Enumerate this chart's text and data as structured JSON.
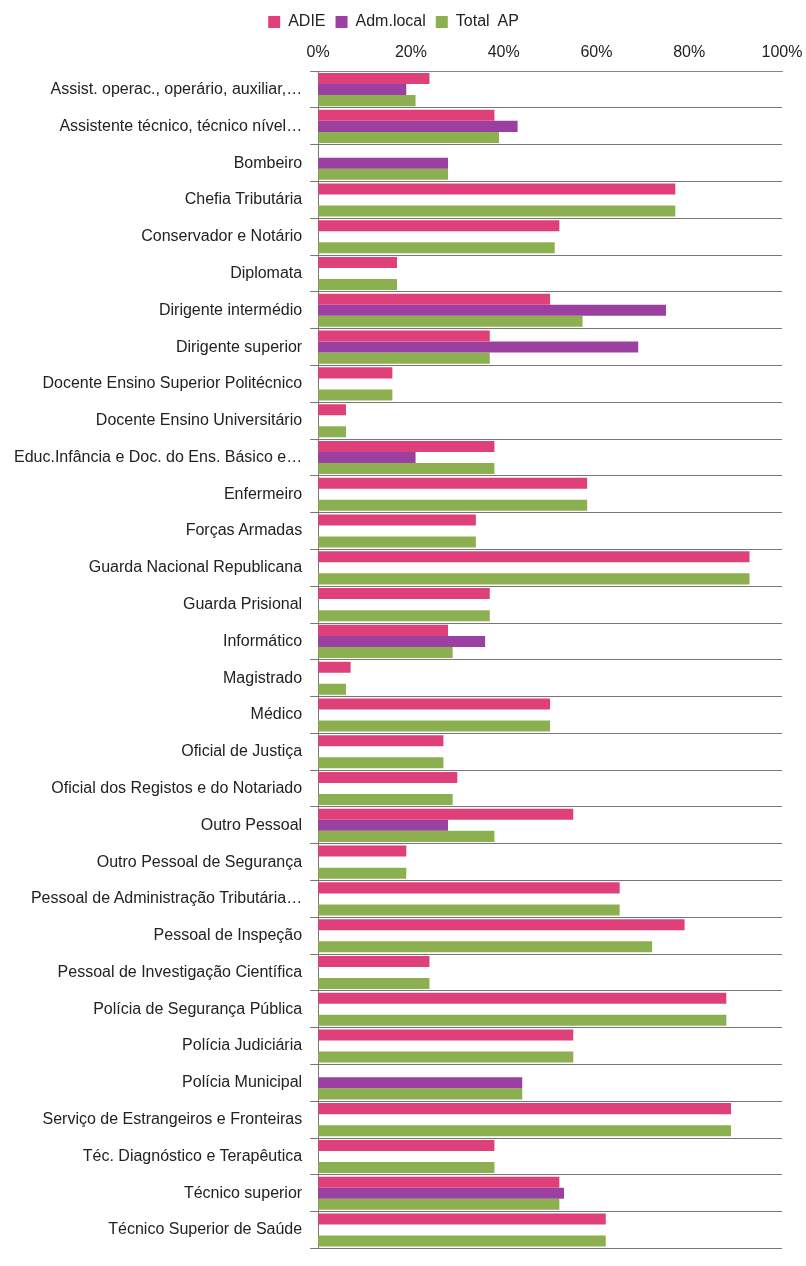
{
  "chart_data": {
    "type": "bar",
    "orientation": "horizontal",
    "categories": [
      "Assist. operac., operário, auxiliar,…",
      "Assistente técnico, técnico nível…",
      "Bombeiro",
      "Chefia Tributária",
      "Conservador e Notário",
      "Diplomata",
      "Dirigente intermédio",
      "Dirigente superior",
      "Docente Ensino Superior Politécnico",
      "Docente Ensino Universitário",
      "Educ.Infância e Doc. do Ens. Básico e…",
      "Enfermeiro",
      "Forças Armadas",
      "Guarda Nacional Republicana",
      "Guarda Prisional",
      "Informático",
      "Magistrado",
      "Médico",
      "Oficial de Justiça",
      "Oficial dos Registos e do Notariado",
      "Outro Pessoal",
      "Outro Pessoal de Segurança",
      "Pessoal de Administração Tributária…",
      "Pessoal de Inspeção",
      "Pessoal de Investigação Científica",
      "Polícia de Segurança Pública",
      "Polícia Judiciária",
      "Polícia Municipal",
      "Serviço de Estrangeiros e Fronteiras",
      "Téc. Diagnóstico e Terapêutica",
      "Técnico superior",
      "Técnico Superior de Saúde"
    ],
    "series": [
      {
        "name": "ADIE",
        "color": "#e0407a",
        "values": [
          24,
          38,
          null,
          77,
          52,
          17,
          50,
          37,
          16,
          6,
          38,
          58,
          34,
          93,
          37,
          28,
          7,
          50,
          27,
          30,
          55,
          19,
          65,
          79,
          24,
          88,
          55,
          null,
          89,
          38,
          52,
          62
        ]
      },
      {
        "name": "Adm.local",
        "color": "#9b3fa0",
        "values": [
          19,
          43,
          28,
          null,
          null,
          null,
          75,
          69,
          null,
          null,
          21,
          null,
          null,
          null,
          null,
          36,
          null,
          null,
          null,
          null,
          28,
          null,
          null,
          null,
          null,
          null,
          null,
          44,
          null,
          null,
          53,
          null
        ]
      },
      {
        "name": "Total  AP",
        "color": "#8cb050",
        "values": [
          21,
          39,
          28,
          77,
          51,
          17,
          57,
          37,
          16,
          6,
          38,
          58,
          34,
          93,
          37,
          29,
          6,
          50,
          27,
          29,
          38,
          19,
          65,
          72,
          24,
          88,
          55,
          44,
          89,
          38,
          52,
          62
        ]
      }
    ],
    "xlim": [
      0,
      100
    ],
    "xticks": [
      {
        "value": 0,
        "label": "0%"
      },
      {
        "value": 20,
        "label": "20%"
      },
      {
        "value": 40,
        "label": "40%"
      },
      {
        "value": 60,
        "label": "60%"
      },
      {
        "value": 80,
        "label": "80%"
      },
      {
        "value": 100,
        "label": "100%"
      }
    ],
    "grid": "y",
    "legend": "top"
  }
}
